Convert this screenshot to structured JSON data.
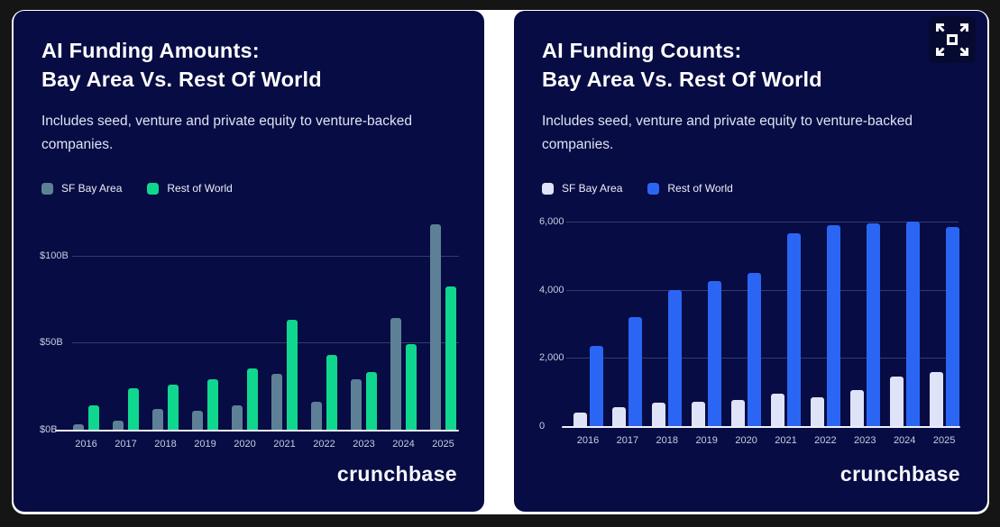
{
  "page": {
    "frame_color": "#151515",
    "surface_color": "#ffffff",
    "card_color": "#070c44"
  },
  "icons": {
    "expand": "fullscreen-expand"
  },
  "cards": [
    {
      "title_line1": "AI Funding Amounts:",
      "title_line2": "Bay Area Vs. Rest Of World",
      "subtitle": "Includes seed, venture and private equity to venture-backed companies.",
      "footer_wordmark": "crunchbase",
      "legend": [
        {
          "label": "SF Bay Area",
          "color": "#5e8096"
        },
        {
          "label": "Rest of World",
          "color": "#10d78e"
        }
      ],
      "chart_data": {
        "type": "bar",
        "title": "AI Funding Amounts: Bay Area Vs. Rest Of World",
        "categories": [
          "2016",
          "2017",
          "2018",
          "2019",
          "2020",
          "2021",
          "2022",
          "2023",
          "2024",
          "2025"
        ],
        "series": [
          {
            "name": "SF Bay Area",
            "color": "#5e8096",
            "values": [
              3,
              5,
              12,
              11,
              14,
              32,
              16,
              29,
              64,
              118
            ]
          },
          {
            "name": "Rest of World",
            "color": "#10d78e",
            "values": [
              14,
              24,
              26,
              29,
              35,
              63,
              43,
              33,
              49,
              82
            ]
          }
        ],
        "y_ticks": [
          {
            "value": 0,
            "label": "$0B"
          },
          {
            "value": 50,
            "label": "$50B"
          },
          {
            "value": 100,
            "label": "$100B"
          }
        ],
        "ylim": [
          0,
          120
        ],
        "grid": true,
        "legend_position": "top-left"
      }
    },
    {
      "title_line1": "AI Funding Counts:",
      "title_line2": "Bay Area Vs. Rest Of World",
      "subtitle": "Includes seed, venture and private equity to venture-backed companies.",
      "footer_wordmark": "crunchbase",
      "legend": [
        {
          "label": "SF Bay Area",
          "color": "#dee3f8"
        },
        {
          "label": "Rest of World",
          "color": "#2a66f3"
        }
      ],
      "chart_data": {
        "type": "bar",
        "title": "AI Funding Counts: Bay Area Vs. Rest Of World",
        "categories": [
          "2016",
          "2017",
          "2018",
          "2019",
          "2020",
          "2021",
          "2022",
          "2023",
          "2024",
          "2025"
        ],
        "series": [
          {
            "name": "SF Bay Area",
            "color": "#dee3f8",
            "values": [
              400,
              550,
              700,
              720,
              770,
              950,
              850,
              1070,
              1450,
              1600
            ]
          },
          {
            "name": "Rest of World",
            "color": "#2a66f3",
            "values": [
              2350,
              3200,
              4000,
              4250,
              4500,
              5650,
              5900,
              5950,
              6000,
              5850
            ]
          }
        ],
        "y_ticks": [
          {
            "value": 0,
            "label": "0"
          },
          {
            "value": 2000,
            "label": "2,000"
          },
          {
            "value": 4000,
            "label": "4,000"
          },
          {
            "value": 6000,
            "label": "6,000"
          }
        ],
        "ylim": [
          0,
          6100
        ],
        "grid": true,
        "legend_position": "top-left"
      }
    }
  ]
}
